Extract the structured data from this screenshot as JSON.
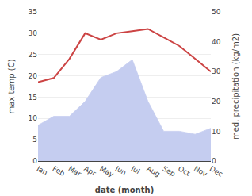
{
  "chart_data": {
    "type": "line",
    "categories": [
      "Jan",
      "Feb",
      "Mar",
      "Apr",
      "May",
      "Jun",
      "Jul",
      "Aug",
      "Sep",
      "Oct",
      "Nov",
      "Dec"
    ],
    "series": [
      {
        "type": "area",
        "color": "#c5cdf0",
        "axis": "y2",
        "values": [
          12,
          15,
          15,
          20,
          28,
          30,
          34,
          20,
          10,
          10,
          9,
          11
        ]
      },
      {
        "type": "line",
        "color": "#cc4444",
        "values": [
          18.5,
          19.5,
          24.0,
          30.0,
          28.5,
          30.0,
          30.5,
          31.0,
          29.0,
          27.0,
          24.0,
          21.0
        ]
      }
    ],
    "x_label": "date (month)",
    "y_label": "max temp (C)",
    "y2_label": "med. precipitation (kg/m2)",
    "ylim": [
      0,
      35
    ],
    "yticks": [
      0,
      5,
      10,
      15,
      20,
      25,
      30,
      35
    ],
    "y2lim": [
      0,
      50
    ],
    "y2ticks": [
      0,
      10,
      20,
      30,
      40,
      50
    ],
    "grid": true
  }
}
